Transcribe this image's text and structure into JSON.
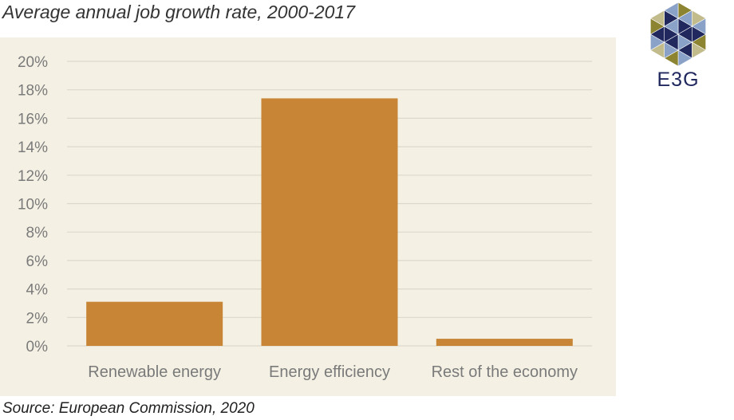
{
  "title": "Average annual job growth rate, 2000-2017",
  "source": "Source: European Commission, 2020",
  "logo_text": "E3G",
  "colors": {
    "panel": "#f4f1e4",
    "bar": "#c78535",
    "grid": "#dcd8cc",
    "tick_text": "#7a7a7a",
    "logo_navy": "#20285e",
    "logo_olive": "#8c8430",
    "logo_blue": "#8aa2c8",
    "logo_khaki": "#c2bb8c"
  },
  "chart_data": {
    "type": "bar",
    "categories": [
      "Renewable energy",
      "Energy efficiency",
      "Rest of the economy"
    ],
    "values": [
      3.1,
      17.4,
      0.5
    ],
    "unit": "%",
    "ylim": [
      0,
      20
    ],
    "yticks": [
      0,
      2,
      4,
      6,
      8,
      10,
      12,
      14,
      16,
      18,
      20
    ],
    "ytick_labels": [
      "0%",
      "2%",
      "4%",
      "6%",
      "8%",
      "10%",
      "12%",
      "14%",
      "16%",
      "18%",
      "20%"
    ],
    "grid": true,
    "legend": "none"
  }
}
